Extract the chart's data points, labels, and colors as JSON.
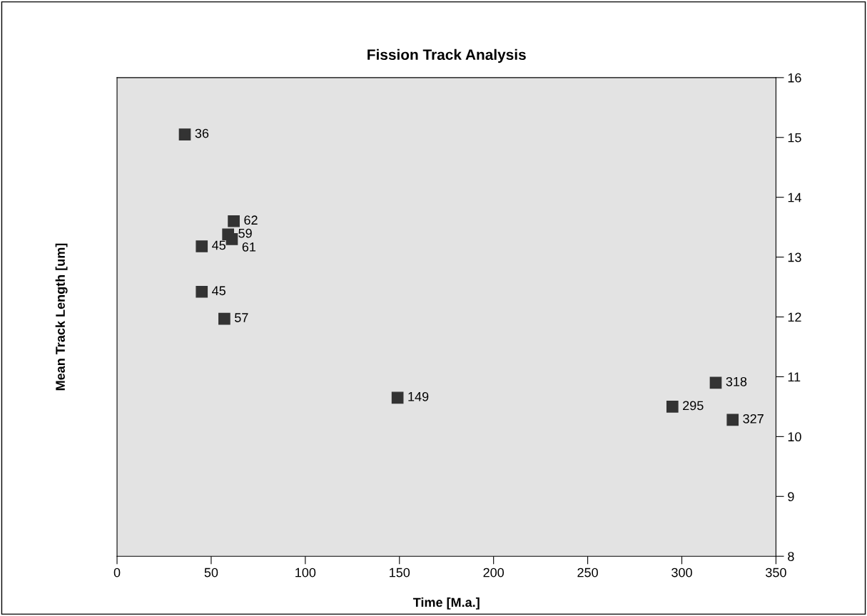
{
  "chart_data": {
    "type": "scatter",
    "title": "Fission Track Analysis",
    "xlabel": "Time [M.a.]",
    "ylabel": "Mean Track Length [um]",
    "x": [
      36,
      62,
      59,
      61,
      45,
      45,
      57,
      149,
      295,
      318,
      327
    ],
    "series": [
      {
        "color": "#333333",
        "values": [
          15.05,
          13.6,
          13.38,
          13.3,
          13.18,
          12.42,
          11.97,
          10.65,
          10.5,
          10.9,
          10.28
        ],
        "marker": "square"
      }
    ],
    "annotations": [
      {
        "text": "36",
        "x": 36,
        "y": 15.05
      },
      {
        "text": "62",
        "x": 62,
        "y": 13.6
      },
      {
        "text": "59",
        "x": 59,
        "y": 13.38
      },
      {
        "text": "61",
        "x": 61,
        "y": 13.3
      },
      {
        "text": "45",
        "x": 45,
        "y": 13.18
      },
      {
        "text": "45",
        "x": 45,
        "y": 12.42
      },
      {
        "text": "57",
        "x": 57,
        "y": 11.97
      },
      {
        "text": "149",
        "x": 149,
        "y": 10.65
      },
      {
        "text": "295",
        "x": 295,
        "y": 10.5
      },
      {
        "text": "318",
        "x": 318,
        "y": 10.9
      },
      {
        "text": "327",
        "x": 327,
        "y": 10.28
      }
    ],
    "xlim": [
      0,
      350
    ],
    "xticks": [
      0,
      50,
      100,
      150,
      200,
      250,
      300,
      350
    ],
    "ylim": [
      8,
      16
    ],
    "yticks": [
      8,
      9,
      10,
      11,
      12,
      13,
      14,
      15,
      16
    ],
    "grid": false,
    "legend": false
  }
}
